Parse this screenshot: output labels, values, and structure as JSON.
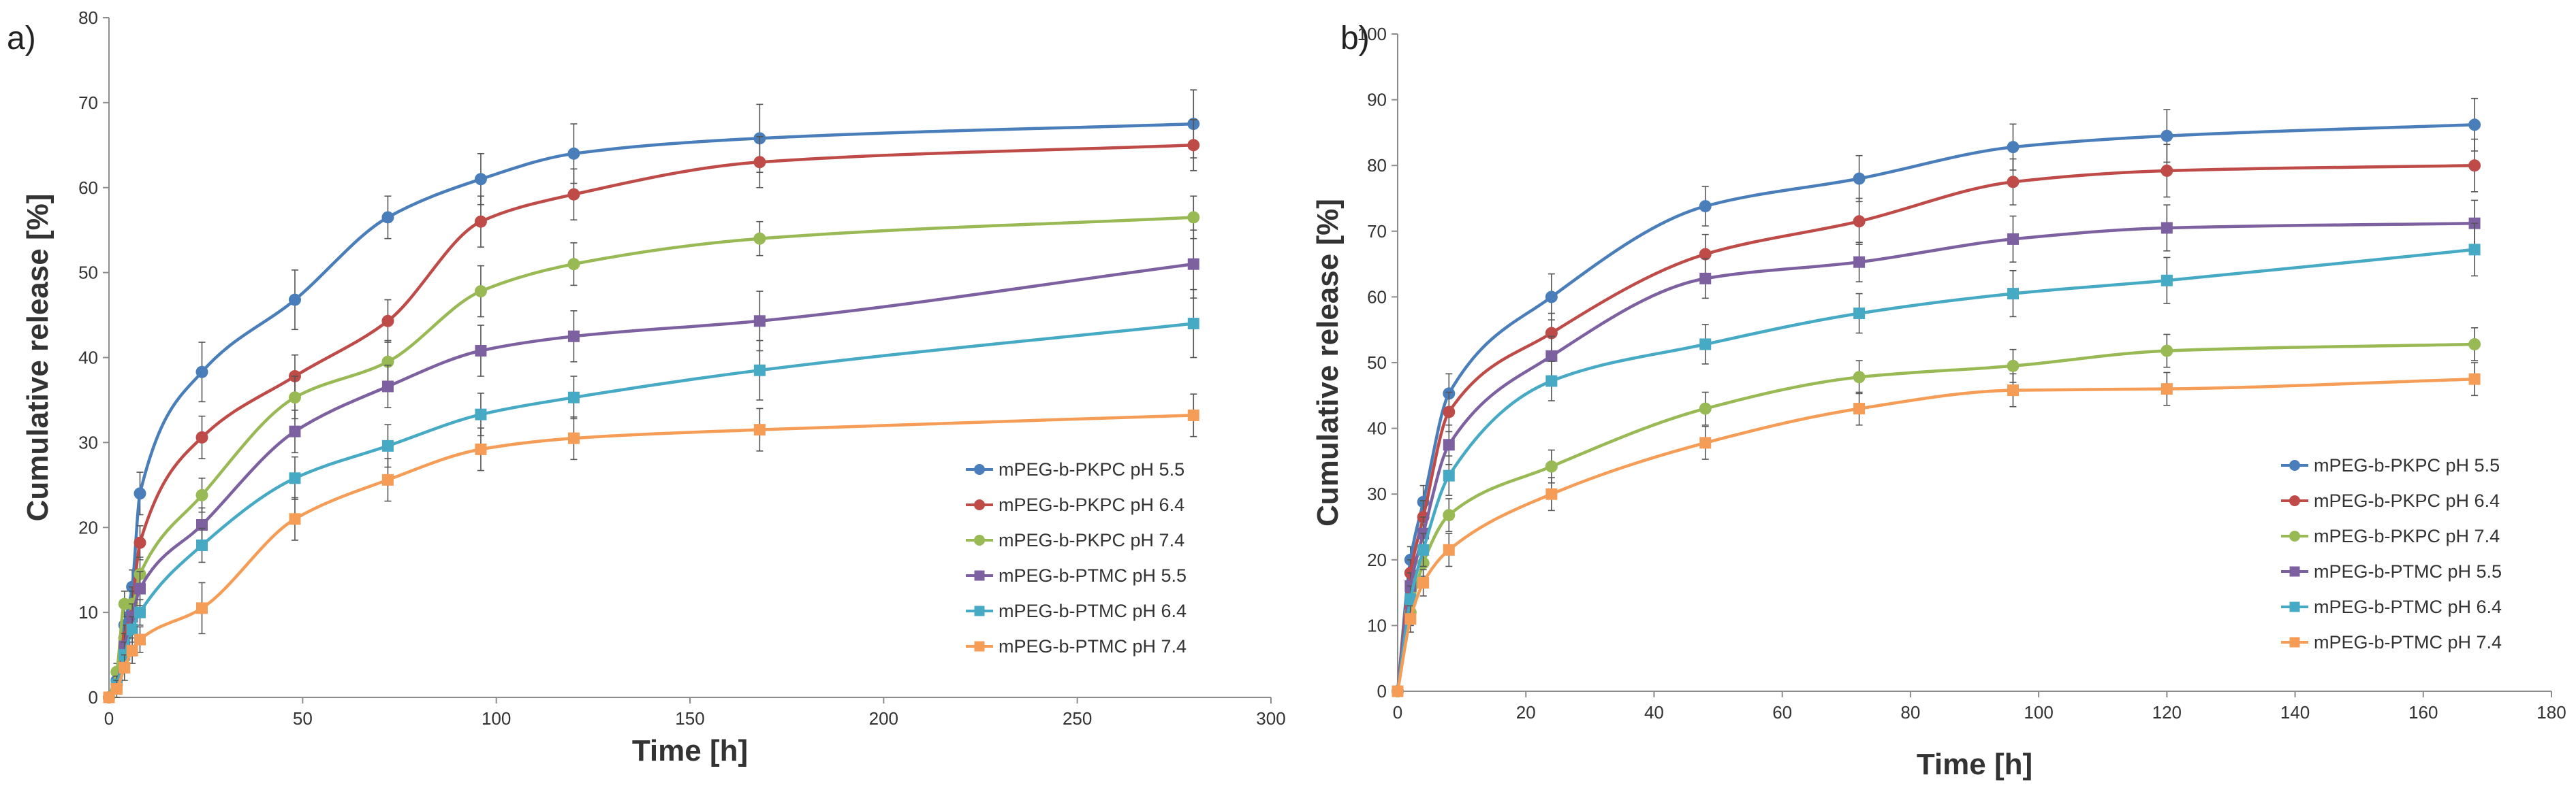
{
  "chart_data": [
    {
      "type": "line",
      "panel_label": "a)",
      "title": "",
      "xlabel": "Time [h]",
      "ylabel": "Cumulative release [%]",
      "xlim": [
        0,
        300
      ],
      "ylim": [
        0,
        80
      ],
      "xticks": [
        0,
        50,
        100,
        150,
        200,
        250,
        300
      ],
      "yticks": [
        0,
        10,
        20,
        30,
        40,
        50,
        60,
        70,
        80
      ],
      "xtick_labels": [
        "0",
        "50",
        "100",
        "150",
        "200",
        "250",
        "300"
      ],
      "ytick_labels": [
        "0",
        "10",
        "20",
        "30",
        "40",
        "50",
        "60",
        "70",
        "80"
      ],
      "grid": false,
      "legend_position": "lower-right",
      "series": [
        {
          "name": "mPEG-b-PKPC pH 5.5",
          "color": "#4a7ebb",
          "marker": "circle",
          "x": [
            0,
            2,
            4,
            6,
            8,
            24,
            48,
            72,
            96,
            120,
            168,
            280
          ],
          "y": [
            0,
            2,
            8.5,
            13,
            24,
            38.3,
            46.8,
            56.5,
            61,
            64,
            65.8,
            67.5
          ],
          "err": [
            0,
            1,
            1.5,
            2,
            2.5,
            3.5,
            3.5,
            2.5,
            3,
            3.5,
            4,
            4
          ]
        },
        {
          "name": "mPEG-b-PKPC pH 6.4",
          "color": "#be4b48",
          "marker": "circle",
          "x": [
            0,
            2,
            4,
            6,
            8,
            24,
            48,
            72,
            96,
            120,
            168,
            280
          ],
          "y": [
            0,
            1.5,
            7,
            11,
            18.2,
            30.6,
            37.8,
            44.3,
            56,
            59.2,
            63,
            65
          ],
          "err": [
            0,
            1,
            1.5,
            2,
            2,
            2.5,
            2.5,
            2.5,
            3,
            3,
            3,
            3
          ]
        },
        {
          "name": "mPEG-b-PKPC pH 7.4",
          "color": "#98b954",
          "marker": "circle",
          "x": [
            0,
            2,
            4,
            6,
            8,
            24,
            48,
            72,
            96,
            120,
            168,
            280
          ],
          "y": [
            0,
            3,
            11,
            11,
            14.5,
            23.8,
            35.3,
            39.5,
            47.8,
            51,
            54,
            56.5
          ],
          "err": [
            0,
            1,
            1.5,
            1.5,
            2,
            2,
            2.5,
            2.5,
            3,
            2.5,
            2,
            2.5
          ]
        },
        {
          "name": "mPEG-b-PTMC pH 5.5",
          "color": "#7d60a0",
          "marker": "square",
          "x": [
            0,
            2,
            4,
            6,
            8,
            24,
            48,
            72,
            96,
            120,
            168,
            280
          ],
          "y": [
            0,
            1.5,
            6,
            9.5,
            12.8,
            20.3,
            31.3,
            36.6,
            40.8,
            42.5,
            44.3,
            51
          ],
          "err": [
            0,
            1,
            1.5,
            1.5,
            2,
            2,
            2.5,
            2.5,
            3,
            3,
            3.5,
            4
          ]
        },
        {
          "name": "mPEG-b-PTMC pH 6.4",
          "color": "#46aac5",
          "marker": "square",
          "x": [
            0,
            2,
            4,
            6,
            8,
            24,
            48,
            72,
            96,
            120,
            168,
            280
          ],
          "y": [
            0,
            1.5,
            5,
            8,
            10,
            17.9,
            25.8,
            29.6,
            33.3,
            35.3,
            38.5,
            44
          ],
          "err": [
            0,
            1,
            1.5,
            1.5,
            1.5,
            2,
            2.5,
            2.5,
            2.5,
            2.5,
            3.5,
            4
          ]
        },
        {
          "name": "mPEG-b-PTMC pH 7.4",
          "color": "#f59d56",
          "marker": "square",
          "x": [
            0,
            2,
            4,
            6,
            8,
            24,
            48,
            72,
            96,
            120,
            168,
            280
          ],
          "y": [
            0,
            1,
            3.5,
            5.5,
            6.8,
            10.5,
            21,
            25.6,
            29.2,
            30.5,
            31.5,
            33.2
          ],
          "err": [
            0,
            1,
            1.5,
            1.5,
            1.5,
            3,
            2.5,
            2.5,
            2.5,
            2.5,
            2.5,
            2.5
          ]
        }
      ]
    },
    {
      "type": "line",
      "panel_label": "b)",
      "title": "",
      "xlabel": "Time [h]",
      "ylabel": "Cumulative release [%]",
      "xlim": [
        0,
        180
      ],
      "ylim": [
        0,
        100
      ],
      "xticks": [
        0,
        20,
        40,
        60,
        80,
        100,
        120,
        140,
        160,
        180
      ],
      "yticks": [
        0,
        10,
        20,
        30,
        40,
        50,
        60,
        70,
        80,
        90,
        100
      ],
      "xtick_labels": [
        "0",
        "20",
        "40",
        "60",
        "80",
        "100",
        "120",
        "140",
        "160",
        "180"
      ],
      "ytick_labels": [
        "0",
        "10",
        "20",
        "30",
        "40",
        "50",
        "60",
        "70",
        "80",
        "90",
        "100"
      ],
      "grid": false,
      "legend_position": "lower-right",
      "series": [
        {
          "name": "mPEG-b-PKPC pH 5.5",
          "color": "#4a7ebb",
          "marker": "circle",
          "x": [
            0,
            2,
            4,
            8,
            24,
            48,
            72,
            96,
            120,
            168
          ],
          "y": [
            0,
            20,
            28.8,
            45.3,
            60,
            73.8,
            78,
            82.8,
            84.5,
            86.2
          ],
          "err": [
            0,
            2,
            2.5,
            3,
            3.5,
            3,
            3.5,
            3.5,
            4,
            4
          ]
        },
        {
          "name": "mPEG-b-PKPC pH 6.4",
          "color": "#be4b48",
          "marker": "circle",
          "x": [
            0,
            2,
            4,
            8,
            24,
            48,
            72,
            96,
            120,
            168
          ],
          "y": [
            0,
            18,
            26.5,
            42.5,
            54.5,
            66.5,
            71.5,
            77.5,
            79.2,
            80
          ],
          "err": [
            0,
            2,
            2.5,
            3,
            3,
            3,
            3.5,
            3.5,
            4,
            4
          ]
        },
        {
          "name": "mPEG-b-PKPC pH 7.4",
          "color": "#98b954",
          "marker": "circle",
          "x": [
            0,
            2,
            4,
            8,
            24,
            48,
            72,
            96,
            120,
            168
          ],
          "y": [
            0,
            12,
            19.5,
            26.8,
            34.2,
            43,
            47.8,
            49.5,
            51.8,
            52.8
          ],
          "err": [
            0,
            2,
            2,
            2.5,
            2.5,
            2.5,
            2.5,
            2.5,
            2.5,
            2.5
          ]
        },
        {
          "name": "mPEG-b-PTMC pH 5.5",
          "color": "#7d60a0",
          "marker": "square",
          "x": [
            0,
            2,
            4,
            8,
            24,
            48,
            72,
            96,
            120,
            168
          ],
          "y": [
            0,
            16,
            24,
            37.5,
            51,
            62.8,
            65.3,
            68.8,
            70.5,
            71.2
          ],
          "err": [
            0,
            2,
            2.5,
            3,
            3,
            3,
            3,
            3.5,
            3.5,
            3.5
          ]
        },
        {
          "name": "mPEG-b-PTMC pH 6.4",
          "color": "#46aac5",
          "marker": "square",
          "x": [
            0,
            2,
            4,
            8,
            24,
            48,
            72,
            96,
            120,
            168
          ],
          "y": [
            0,
            14,
            21.5,
            32.8,
            47.2,
            52.8,
            57.5,
            60.5,
            62.5,
            67.2
          ],
          "err": [
            0,
            2,
            2.5,
            3,
            3,
            3,
            3,
            3.5,
            3.5,
            4
          ]
        },
        {
          "name": "mPEG-b-PTMC pH 7.4",
          "color": "#f59d56",
          "marker": "square",
          "x": [
            0,
            2,
            4,
            8,
            24,
            48,
            72,
            96,
            120,
            168
          ],
          "y": [
            0,
            11,
            16.5,
            21.5,
            30,
            37.8,
            43,
            45.8,
            46,
            47.5
          ],
          "err": [
            0,
            2,
            2,
            2.5,
            2.5,
            2.5,
            2.5,
            2.5,
            2.5,
            2.5
          ]
        }
      ]
    }
  ]
}
